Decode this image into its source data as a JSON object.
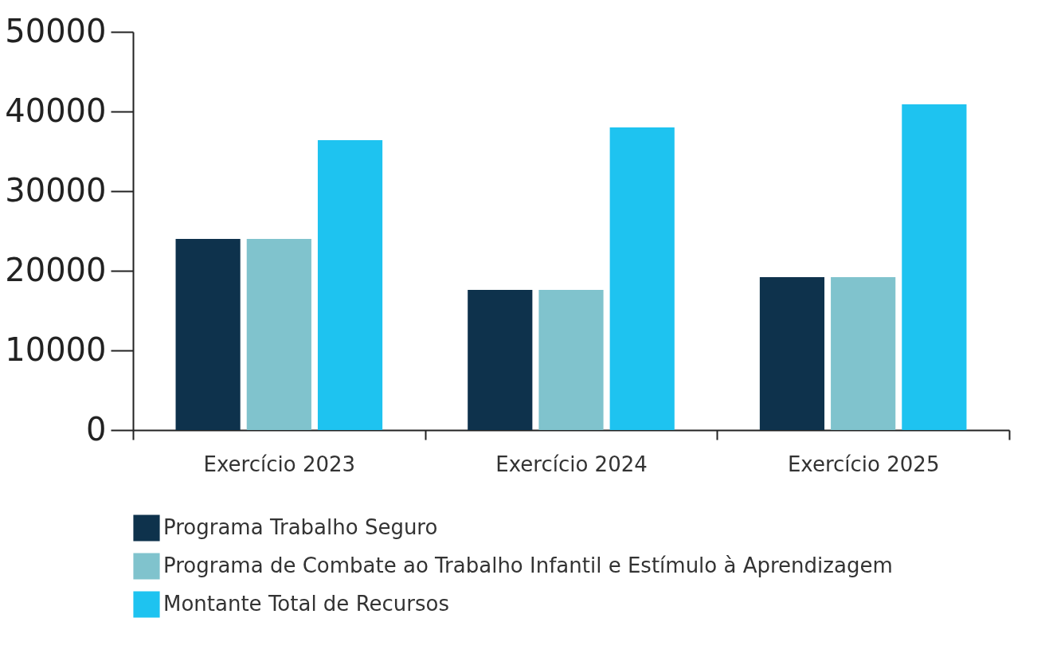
{
  "chart_data": {
    "type": "bar",
    "categories": [
      "Exercício 2023",
      "Exercício 2024",
      "Exercício 2025"
    ],
    "series": [
      {
        "name": "Programa Trabalho Seguro",
        "color": "#0e324c",
        "values": [
          24000,
          17600,
          19200
        ]
      },
      {
        "name": "Programa de Combate ao Trabalho Infantil e Estímulo à Aprendizagem",
        "color": "#80c3cd",
        "values": [
          24000,
          17600,
          19200
        ]
      },
      {
        "name": "Montante Total de Recursos",
        "color": "#1ec3f0",
        "values": [
          36400,
          38000,
          40900
        ]
      }
    ],
    "ylim": [
      0,
      50000
    ],
    "yticks": [
      0,
      10000,
      20000,
      30000,
      40000,
      50000
    ],
    "grid": false,
    "legend": "bottom"
  }
}
